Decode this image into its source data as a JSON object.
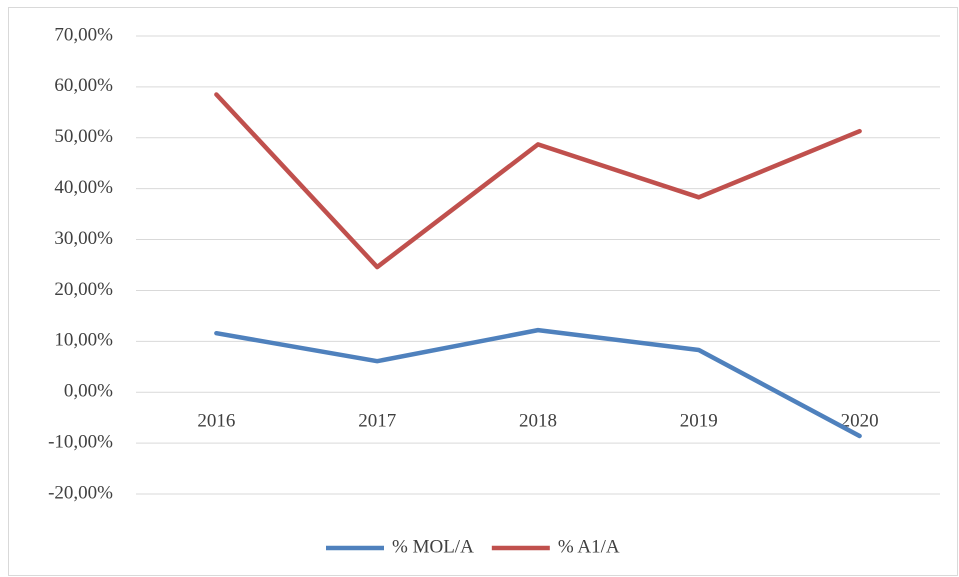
{
  "chart_data": {
    "type": "line",
    "categories": [
      "2016",
      "2017",
      "2018",
      "2019",
      "2020"
    ],
    "series": [
      {
        "name": "% MOL/A",
        "color": "#4f81bd",
        "values": [
          11.6,
          6.1,
          12.2,
          8.3,
          -8.6
        ]
      },
      {
        "name": "% A1/A",
        "color": "#c0504d",
        "values": [
          58.5,
          24.6,
          48.7,
          38.3,
          51.3
        ]
      }
    ],
    "ylim": [
      -20,
      70
    ],
    "yticks": [
      {
        "value": -20,
        "label": "-20,00%"
      },
      {
        "value": -10,
        "label": "-10,00%"
      },
      {
        "value": 0,
        "label": "0,00%"
      },
      {
        "value": 10,
        "label": "10,00%"
      },
      {
        "value": 20,
        "label": "20,00%"
      },
      {
        "value": 30,
        "label": "30,00%"
      },
      {
        "value": 40,
        "label": "40,00%"
      },
      {
        "value": 50,
        "label": "50,00%"
      },
      {
        "value": 60,
        "label": "60,00%"
      },
      {
        "value": 70,
        "label": "70,00%"
      }
    ],
    "grid": true,
    "legend": "bottom"
  }
}
